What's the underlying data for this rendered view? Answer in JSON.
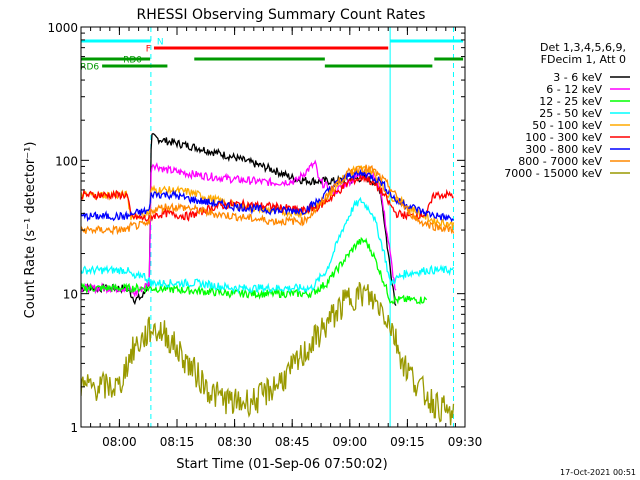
{
  "chart_data": {
    "type": "line",
    "title": "RHESSI Observing Summary Count Rates",
    "xlabel": "Start Time (01-Sep-06 07:50:02)",
    "ylabel": "Count Rate (s⁻¹ detector⁻¹)",
    "yscale": "log",
    "xlim": [
      0,
      100
    ],
    "ylim": [
      1,
      1000
    ],
    "x_ticks": [
      {
        "minute": 10,
        "label": "08:00"
      },
      {
        "minute": 25,
        "label": "08:15"
      },
      {
        "minute": 40,
        "label": "08:30"
      },
      {
        "minute": 55,
        "label": "08:45"
      },
      {
        "minute": 70,
        "label": "09:00"
      },
      {
        "minute": 85,
        "label": "09:15"
      },
      {
        "minute": 100,
        "label": "09:30"
      }
    ],
    "y_ticks": [
      {
        "value": 1,
        "label": "1"
      },
      {
        "value": 10,
        "label": "10"
      },
      {
        "value": 100,
        "label": "100"
      },
      {
        "value": 1000,
        "label": "1000"
      }
    ],
    "vlines": [
      {
        "minute": 18.2,
        "color": "#00ffff",
        "style": "dashed"
      },
      {
        "minute": 80.5,
        "color": "#00ffff",
        "style": "solid"
      },
      {
        "minute": 97.0,
        "color": "#00ffff",
        "style": "dashed"
      }
    ],
    "flag_bars": [
      {
        "label": "N",
        "color": "#00ffff",
        "level": 0,
        "segments": [
          [
            0,
            18.2
          ],
          [
            80.5,
            99.5
          ]
        ]
      },
      {
        "label": "F",
        "color": "#ff0000",
        "level": 1,
        "segments": [
          [
            19.0,
            80.0
          ]
        ]
      },
      {
        "label": "RD0",
        "color": "#009900",
        "level": 2,
        "segments": [
          [
            0,
            18.0
          ],
          [
            29.5,
            63.5
          ],
          [
            92.0,
            99.5
          ]
        ]
      },
      {
        "label": "RD6",
        "color": "#009900",
        "level": 3,
        "segments": [
          [
            5.5,
            22.5
          ],
          [
            63.5,
            91.5
          ]
        ]
      }
    ],
    "legend_header": [
      "Det 1,3,4,5,6,9,",
      "FDecim 1, Att 0"
    ],
    "series": [
      {
        "name": "3 - 6 keV",
        "color": "#000000",
        "points": [
          [
            0,
            11
          ],
          [
            12,
            11
          ],
          [
            14,
            9
          ],
          [
            16,
            9.5
          ],
          [
            17.8,
            12
          ],
          [
            18.3,
            150
          ],
          [
            22,
            140
          ],
          [
            30,
            125
          ],
          [
            40,
            105
          ],
          [
            50,
            85
          ],
          [
            56,
            72
          ],
          [
            60,
            70
          ],
          [
            66,
            70
          ],
          [
            70,
            72
          ],
          [
            74,
            74
          ],
          [
            76,
            70
          ],
          [
            78,
            60
          ],
          [
            80,
            20
          ],
          [
            82,
            8
          ]
        ]
      },
      {
        "name": "6 - 12 keV",
        "color": "#ff00ff",
        "points": [
          [
            0,
            11
          ],
          [
            12,
            11
          ],
          [
            14,
            10
          ],
          [
            16,
            11
          ],
          [
            17.8,
            12
          ],
          [
            18.3,
            95
          ],
          [
            22,
            85
          ],
          [
            30,
            78
          ],
          [
            40,
            72
          ],
          [
            50,
            68
          ],
          [
            56,
            70
          ],
          [
            60,
            90
          ],
          [
            61,
            95
          ],
          [
            62,
            70
          ],
          [
            66,
            58
          ],
          [
            70,
            70
          ],
          [
            74,
            82
          ],
          [
            76,
            80
          ],
          [
            78,
            60
          ],
          [
            80,
            25
          ],
          [
            82,
            10
          ]
        ]
      },
      {
        "name": "12 - 25 keV",
        "color": "#00ff00",
        "points": [
          [
            0,
            11
          ],
          [
            12,
            11
          ],
          [
            18.3,
            11
          ],
          [
            30,
            10.5
          ],
          [
            40,
            10
          ],
          [
            50,
            10
          ],
          [
            60,
            10
          ],
          [
            64,
            12
          ],
          [
            68,
            17
          ],
          [
            72,
            24
          ],
          [
            74,
            25
          ],
          [
            76,
            20
          ],
          [
            79,
            12
          ],
          [
            80.5,
            9
          ],
          [
            82,
            9
          ],
          [
            90,
            9
          ]
        ]
      },
      {
        "name": "25 - 50 keV",
        "color": "#00ffff",
        "points": [
          [
            0,
            15
          ],
          [
            12,
            15
          ],
          [
            14,
            13
          ],
          [
            16,
            14
          ],
          [
            18.3,
            12
          ],
          [
            25,
            12
          ],
          [
            30,
            12
          ],
          [
            40,
            11
          ],
          [
            50,
            11
          ],
          [
            60,
            11
          ],
          [
            64,
            15
          ],
          [
            68,
            30
          ],
          [
            71,
            45
          ],
          [
            73,
            50
          ],
          [
            76,
            40
          ],
          [
            79,
            20
          ],
          [
            80.5,
            12
          ],
          [
            84,
            14
          ],
          [
            90,
            15
          ],
          [
            97,
            15
          ]
        ]
      },
      {
        "name": "50 - 100 keV",
        "color": "#ffaa00",
        "points": [
          [
            0,
            55
          ],
          [
            12,
            55
          ],
          [
            13,
            38
          ],
          [
            17.8,
            40
          ],
          [
            18.3,
            60
          ],
          [
            22,
            60
          ],
          [
            28,
            58
          ],
          [
            40,
            46
          ],
          [
            50,
            42
          ],
          [
            58,
            40
          ],
          [
            63,
            48
          ],
          [
            67,
            68
          ],
          [
            71,
            85
          ],
          [
            73,
            87
          ],
          [
            76,
            82
          ],
          [
            80,
            55
          ],
          [
            84,
            48
          ],
          [
            88,
            40
          ],
          [
            92,
            35
          ],
          [
            97,
            33
          ]
        ]
      },
      {
        "name": "100 - 300 keV",
        "color": "#ff0000",
        "points": [
          [
            0,
            55
          ],
          [
            12,
            55
          ],
          [
            13,
            38
          ],
          [
            17.8,
            36
          ],
          [
            18.3,
            38
          ],
          [
            22,
            40
          ],
          [
            28,
            38
          ],
          [
            35,
            45
          ],
          [
            40,
            47
          ],
          [
            50,
            45
          ],
          [
            58,
            42
          ],
          [
            62,
            45
          ],
          [
            66,
            55
          ],
          [
            70,
            70
          ],
          [
            74,
            75
          ],
          [
            78,
            60
          ],
          [
            82,
            40
          ],
          [
            86,
            38
          ],
          [
            90,
            40
          ],
          [
            92,
            55
          ],
          [
            97,
            55
          ]
        ]
      },
      {
        "name": "300 - 800 keV",
        "color": "#0000ff",
        "points": [
          [
            0,
            38
          ],
          [
            12,
            38
          ],
          [
            14,
            40
          ],
          [
            17.8,
            42
          ],
          [
            18.3,
            56
          ],
          [
            24,
            55
          ],
          [
            30,
            50
          ],
          [
            40,
            45
          ],
          [
            50,
            42
          ],
          [
            58,
            42
          ],
          [
            62,
            50
          ],
          [
            66,
            65
          ],
          [
            70,
            78
          ],
          [
            74,
            80
          ],
          [
            78,
            70
          ],
          [
            82,
            50
          ],
          [
            86,
            45
          ],
          [
            90,
            40
          ],
          [
            97,
            36
          ]
        ]
      },
      {
        "name": "800 - 7000 keV",
        "color": "#ff8800",
        "points": [
          [
            0,
            30
          ],
          [
            12,
            30
          ],
          [
            13,
            32
          ],
          [
            17.8,
            33
          ],
          [
            18.3,
            42
          ],
          [
            22,
            45
          ],
          [
            28,
            44
          ],
          [
            34,
            40
          ],
          [
            40,
            38
          ],
          [
            50,
            35
          ],
          [
            58,
            35
          ],
          [
            62,
            45
          ],
          [
            66,
            65
          ],
          [
            70,
            82
          ],
          [
            73,
            88
          ],
          [
            76,
            85
          ],
          [
            80,
            65
          ],
          [
            84,
            45
          ],
          [
            88,
            35
          ],
          [
            92,
            32
          ],
          [
            97,
            30
          ]
        ]
      },
      {
        "name": "7000 - 15000 keV",
        "color": "#999900",
        "points": [
          [
            0,
            2
          ],
          [
            10,
            2
          ],
          [
            12,
            3
          ],
          [
            14,
            4
          ],
          [
            16,
            4.5
          ],
          [
            18.3,
            5.5
          ],
          [
            22,
            5
          ],
          [
            26,
            3.5
          ],
          [
            30,
            2.5
          ],
          [
            34,
            1.8
          ],
          [
            40,
            1.5
          ],
          [
            46,
            1.6
          ],
          [
            50,
            2
          ],
          [
            54,
            2.5
          ],
          [
            58,
            3.5
          ],
          [
            62,
            5
          ],
          [
            66,
            7
          ],
          [
            70,
            9.5
          ],
          [
            74,
            10
          ],
          [
            78,
            8
          ],
          [
            80.5,
            6
          ],
          [
            84,
            3
          ],
          [
            88,
            2
          ],
          [
            92,
            1.5
          ],
          [
            97,
            1.2
          ]
        ]
      }
    ]
  },
  "footer": {
    "timestamp": "17-Oct-2021 00:51"
  }
}
